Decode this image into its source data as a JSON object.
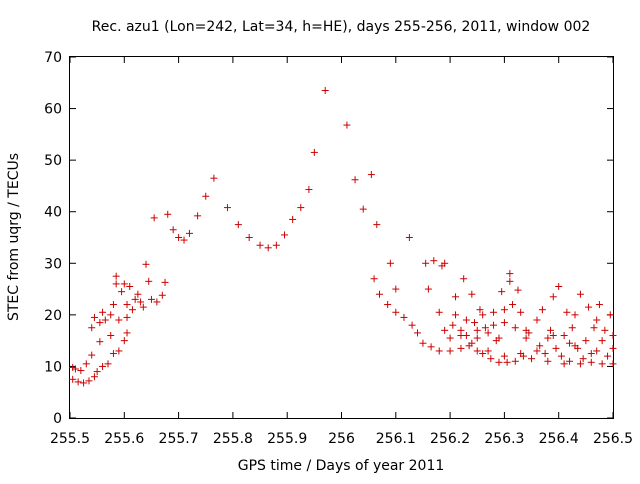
{
  "chart_data": {
    "type": "scatter",
    "title": "Rec. azu1 (Lon=242, Lat=34, h=HE), days 255-256, 2011, window 002",
    "xlabel": "GPS time / Days of year 2011",
    "ylabel": "STEC from uqrg / TECUs",
    "xlim": [
      255.5,
      256.5
    ],
    "ylim": [
      0,
      70
    ],
    "xticks": [
      "255.5",
      "255.6",
      "255.7",
      "255.8",
      "255.9",
      "256",
      "256.1",
      "256.2",
      "256.3",
      "256.4",
      "256.5"
    ],
    "yticks": [
      "0",
      "10",
      "20",
      "30",
      "40",
      "50",
      "60",
      "70"
    ],
    "grid": false,
    "legend": "none",
    "marker": "+",
    "marker_color": "#cc0000",
    "series": [
      {
        "points": [
          [
            255.505,
            9.8
          ],
          [
            255.505,
            7.5
          ],
          [
            255.51,
            9.5
          ],
          [
            255.515,
            7.0
          ],
          [
            255.52,
            9.2
          ],
          [
            255.525,
            6.8
          ],
          [
            255.53,
            10.5
          ],
          [
            255.535,
            7.2
          ],
          [
            255.54,
            12.2
          ],
          [
            255.545,
            8.0
          ],
          [
            255.54,
            17.5
          ],
          [
            255.545,
            19.5
          ],
          [
            255.55,
            9.0
          ],
          [
            255.555,
            14.8
          ],
          [
            255.555,
            18.5
          ],
          [
            255.56,
            20.5
          ],
          [
            255.56,
            10.0
          ],
          [
            255.565,
            19.0
          ],
          [
            255.57,
            10.5
          ],
          [
            255.575,
            20.0
          ],
          [
            255.575,
            16.0
          ],
          [
            255.58,
            12.5
          ],
          [
            255.58,
            22.0
          ],
          [
            255.585,
            27.5
          ],
          [
            255.585,
            26.0
          ],
          [
            255.59,
            19.0
          ],
          [
            255.59,
            13.0
          ],
          [
            255.595,
            24.5
          ],
          [
            255.6,
            15.0
          ],
          [
            255.6,
            26.0
          ],
          [
            255.605,
            22.0
          ],
          [
            255.605,
            19.5
          ],
          [
            255.605,
            16.5
          ],
          [
            255.61,
            25.5
          ],
          [
            255.615,
            21.0
          ],
          [
            255.62,
            23.0
          ],
          [
            255.625,
            24.0
          ],
          [
            255.63,
            22.5
          ],
          [
            255.635,
            21.5
          ],
          [
            255.64,
            29.8
          ],
          [
            255.645,
            26.5
          ],
          [
            255.65,
            23.0
          ],
          [
            255.655,
            38.8
          ],
          [
            255.66,
            22.5
          ],
          [
            255.67,
            23.8
          ],
          [
            255.675,
            26.3
          ],
          [
            255.68,
            39.5
          ],
          [
            255.69,
            36.5
          ],
          [
            255.7,
            35.0
          ],
          [
            255.71,
            34.5
          ],
          [
            255.72,
            35.8
          ],
          [
            255.735,
            39.2
          ],
          [
            255.75,
            43.0
          ],
          [
            255.765,
            46.5
          ],
          [
            255.79,
            40.8
          ],
          [
            255.81,
            37.5
          ],
          [
            255.83,
            35.0
          ],
          [
            255.85,
            33.5
          ],
          [
            255.865,
            33.0
          ],
          [
            255.88,
            33.5
          ],
          [
            255.895,
            35.5
          ],
          [
            255.91,
            38.5
          ],
          [
            255.925,
            40.8
          ],
          [
            255.94,
            44.3
          ],
          [
            255.95,
            51.5
          ],
          [
            255.97,
            63.5
          ],
          [
            256.01,
            56.8
          ],
          [
            256.025,
            46.2
          ],
          [
            256.04,
            40.5
          ],
          [
            256.055,
            47.2
          ],
          [
            256.06,
            27.0
          ],
          [
            256.065,
            37.5
          ],
          [
            256.07,
            24.0
          ],
          [
            256.085,
            22.0
          ],
          [
            256.09,
            30.0
          ],
          [
            256.1,
            25.0
          ],
          [
            256.1,
            20.5
          ],
          [
            256.115,
            19.5
          ],
          [
            256.125,
            35.0
          ],
          [
            256.13,
            18.0
          ],
          [
            256.14,
            16.5
          ],
          [
            256.15,
            14.5
          ],
          [
            256.155,
            30.0
          ],
          [
            256.16,
            25.0
          ],
          [
            256.165,
            13.8
          ],
          [
            256.17,
            30.5
          ],
          [
            256.18,
            20.5
          ],
          [
            256.18,
            13.0
          ],
          [
            256.185,
            29.5
          ],
          [
            256.19,
            17.0
          ],
          [
            256.19,
            30.0
          ],
          [
            256.2,
            13.0
          ],
          [
            256.205,
            18.0
          ],
          [
            256.21,
            20.0
          ],
          [
            256.21,
            23.5
          ],
          [
            256.22,
            17.0
          ],
          [
            256.22,
            13.5
          ],
          [
            256.225,
            27.0
          ],
          [
            256.23,
            16.0
          ],
          [
            256.235,
            14.0
          ],
          [
            256.24,
            24.0
          ],
          [
            256.245,
            18.5
          ],
          [
            256.25,
            15.5
          ],
          [
            256.25,
            13.0
          ],
          [
            256.255,
            21.0
          ],
          [
            256.26,
            12.5
          ],
          [
            256.265,
            17.5
          ],
          [
            256.27,
            16.5
          ],
          [
            256.275,
            11.5
          ],
          [
            256.28,
            20.5
          ],
          [
            256.285,
            15.0
          ],
          [
            256.29,
            10.8
          ],
          [
            256.295,
            24.5
          ],
          [
            256.3,
            21.0
          ],
          [
            256.3,
            18.5
          ],
          [
            256.305,
            10.8
          ],
          [
            256.31,
            26.5
          ],
          [
            256.31,
            28.0
          ],
          [
            256.315,
            22.0
          ],
          [
            256.32,
            11.0
          ],
          [
            256.325,
            24.8
          ],
          [
            256.33,
            20.5
          ],
          [
            256.335,
            12.0
          ],
          [
            256.34,
            17.0
          ],
          [
            256.345,
            16.5
          ],
          [
            256.35,
            11.5
          ],
          [
            256.36,
            19.0
          ],
          [
            256.365,
            14.0
          ],
          [
            256.37,
            21.0
          ],
          [
            256.375,
            12.5
          ],
          [
            256.38,
            15.5
          ],
          [
            256.385,
            17.0
          ],
          [
            256.39,
            23.5
          ],
          [
            256.395,
            13.5
          ],
          [
            256.4,
            25.5
          ],
          [
            256.405,
            12.0
          ],
          [
            256.41,
            16.0
          ],
          [
            256.415,
            20.5
          ],
          [
            256.42,
            11.0
          ],
          [
            256.425,
            17.5
          ],
          [
            256.43,
            14.0
          ],
          [
            256.435,
            13.5
          ],
          [
            256.44,
            24.0
          ],
          [
            256.445,
            11.5
          ],
          [
            256.45,
            15.0
          ],
          [
            256.455,
            21.5
          ],
          [
            256.46,
            10.8
          ],
          [
            256.465,
            17.5
          ],
          [
            256.47,
            13.0
          ],
          [
            256.475,
            22.0
          ],
          [
            256.48,
            10.5
          ],
          [
            256.485,
            17.0
          ],
          [
            256.49,
            12.0
          ],
          [
            256.495,
            20.0
          ],
          [
            256.5,
            10.5
          ],
          [
            256.5,
            13.5
          ],
          [
            256.5,
            16.0
          ],
          [
            256.48,
            15.0
          ],
          [
            256.47,
            19.0
          ],
          [
            256.46,
            12.5
          ],
          [
            256.44,
            10.5
          ],
          [
            256.43,
            20.0
          ],
          [
            256.42,
            14.5
          ],
          [
            256.41,
            10.5
          ],
          [
            256.39,
            16.0
          ],
          [
            256.38,
            11.0
          ],
          [
            256.36,
            13.0
          ],
          [
            256.34,
            15.5
          ],
          [
            256.33,
            12.5
          ],
          [
            256.32,
            17.5
          ],
          [
            256.3,
            12.0
          ],
          [
            256.29,
            15.5
          ],
          [
            256.28,
            18.0
          ],
          [
            256.27,
            13.0
          ],
          [
            256.26,
            20.0
          ],
          [
            256.25,
            17.0
          ],
          [
            256.24,
            14.5
          ],
          [
            256.23,
            19.0
          ],
          [
            256.22,
            16.0
          ],
          [
            256.2,
            15.5
          ]
        ]
      }
    ]
  }
}
